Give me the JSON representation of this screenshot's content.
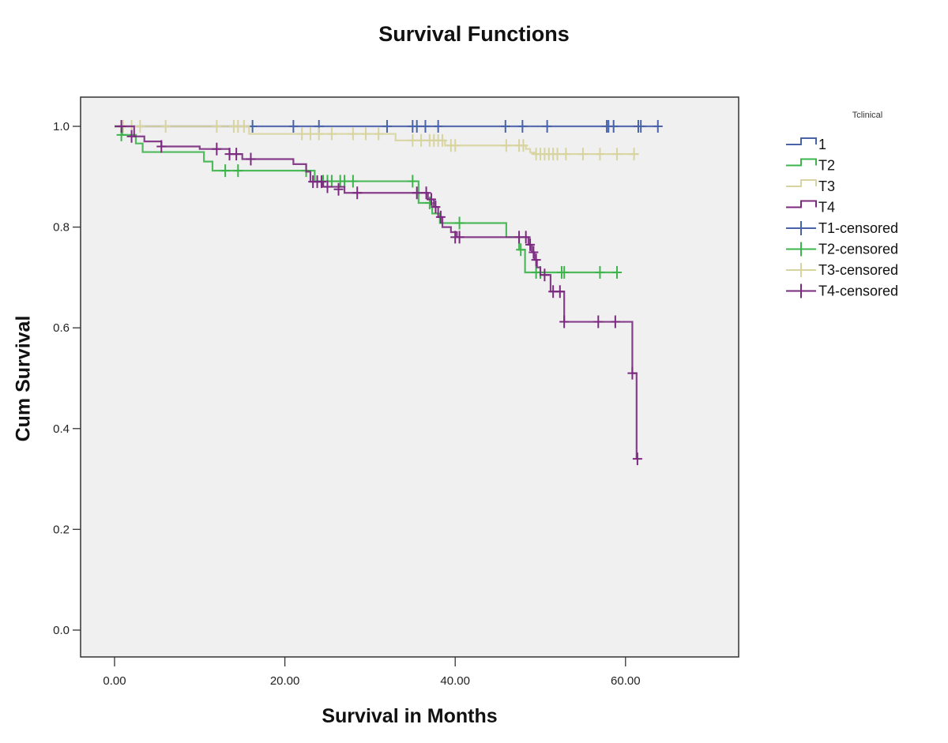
{
  "chart_data": {
    "type": "line",
    "subtype": "kaplan-meier-step",
    "title": "Survival Functions",
    "xlabel": "Survival in Months",
    "ylabel": "Cum Survival",
    "xlim": [
      -4,
      73
    ],
    "ylim": [
      -0.05,
      1.06
    ],
    "xticks": [
      0,
      20,
      40,
      60
    ],
    "xtick_labels": [
      "0.00",
      "20.00",
      "40.00",
      "60.00"
    ],
    "yticks": [
      0.0,
      0.2,
      0.4,
      0.6,
      0.8,
      1.0
    ],
    "ytick_labels": [
      "0.0",
      "0.2",
      "0.4",
      "0.6",
      "0.8",
      "1.0"
    ],
    "grid": false,
    "background": "#f0f0f0",
    "legend": {
      "title": "Tclinical",
      "placement": "right",
      "entries": [
        {
          "label": "1",
          "kind": "step",
          "color": "#4a62a8"
        },
        {
          "label": "T2",
          "kind": "step",
          "color": "#3cb44b"
        },
        {
          "label": "T3",
          "kind": "step",
          "color": "#d8d4a0"
        },
        {
          "label": "T4",
          "kind": "step",
          "color": "#7b2a7f"
        },
        {
          "label": "T1-censored",
          "kind": "censor",
          "color": "#4a62a8"
        },
        {
          "label": "T2-censored",
          "kind": "censor",
          "color": "#3cb44b"
        },
        {
          "label": "T3-censored",
          "kind": "censor",
          "color": "#d8d4a0"
        },
        {
          "label": "T4-censored",
          "kind": "censor",
          "color": "#7b2a7f"
        }
      ]
    },
    "series": [
      {
        "name": "T1",
        "color": "#4a62a8",
        "steps": [
          [
            0,
            1.0
          ],
          [
            63.8,
            1.0
          ]
        ],
        "censored": [
          [
            16.2,
            1.0
          ],
          [
            21,
            1.0
          ],
          [
            24,
            1.0
          ],
          [
            32,
            1.0
          ],
          [
            35,
            1.0
          ],
          [
            35.5,
            1.0
          ],
          [
            36.5,
            1.0
          ],
          [
            38,
            1.0
          ],
          [
            45.9,
            1.0
          ],
          [
            47.9,
            1.0
          ],
          [
            50.8,
            1.0
          ],
          [
            57.8,
            1.0
          ],
          [
            58,
            1.0
          ],
          [
            58.6,
            1.0
          ],
          [
            61.5,
            1.0
          ],
          [
            61.8,
            1.0
          ],
          [
            63.8,
            1.0
          ]
        ]
      },
      {
        "name": "T3",
        "color": "#d8d4a0",
        "steps": [
          [
            0,
            1.0
          ],
          [
            15.8,
            0.985
          ],
          [
            33,
            0.972
          ],
          [
            38.8,
            0.962
          ],
          [
            48.3,
            0.955
          ],
          [
            48.8,
            0.948
          ],
          [
            49.3,
            0.945
          ],
          [
            61.5,
            0.945
          ]
        ],
        "censored": [
          [
            1,
            1.0
          ],
          [
            2,
            1.0
          ],
          [
            3,
            1.0
          ],
          [
            6,
            1.0
          ],
          [
            12,
            1.0
          ],
          [
            14,
            1.0
          ],
          [
            14.5,
            1.0
          ],
          [
            15.2,
            1.0
          ],
          [
            22,
            0.985
          ],
          [
            23,
            0.985
          ],
          [
            24,
            0.985
          ],
          [
            25.5,
            0.985
          ],
          [
            28,
            0.985
          ],
          [
            29.5,
            0.985
          ],
          [
            31,
            0.985
          ],
          [
            35,
            0.972
          ],
          [
            36,
            0.972
          ],
          [
            37,
            0.972
          ],
          [
            37.5,
            0.972
          ],
          [
            38,
            0.972
          ],
          [
            38.5,
            0.972
          ],
          [
            39.5,
            0.962
          ],
          [
            40,
            0.962
          ],
          [
            46,
            0.962
          ],
          [
            47.5,
            0.962
          ],
          [
            48,
            0.962
          ],
          [
            49.5,
            0.945
          ],
          [
            50,
            0.945
          ],
          [
            50.5,
            0.945
          ],
          [
            51,
            0.945
          ],
          [
            51.5,
            0.945
          ],
          [
            52,
            0.945
          ],
          [
            53,
            0.945
          ],
          [
            55,
            0.945
          ],
          [
            57,
            0.945
          ],
          [
            59,
            0.945
          ],
          [
            61,
            0.945
          ]
        ]
      },
      {
        "name": "T2",
        "color": "#3cb44b",
        "steps": [
          [
            0,
            1.0
          ],
          [
            0.9,
            0.983
          ],
          [
            2.5,
            0.966
          ],
          [
            3.3,
            0.949
          ],
          [
            10.5,
            0.93
          ],
          [
            11.5,
            0.912
          ],
          [
            23.5,
            0.891
          ],
          [
            35.7,
            0.848
          ],
          [
            37.3,
            0.827
          ],
          [
            38.2,
            0.808
          ],
          [
            46,
            0.78
          ],
          [
            47.5,
            0.755
          ],
          [
            48.2,
            0.71
          ],
          [
            59,
            0.71
          ]
        ],
        "censored": [
          [
            0.8,
            0.983
          ],
          [
            13,
            0.912
          ],
          [
            14.5,
            0.912
          ],
          [
            22.5,
            0.912
          ],
          [
            24.5,
            0.891
          ],
          [
            25,
            0.891
          ],
          [
            25.5,
            0.891
          ],
          [
            26.5,
            0.891
          ],
          [
            27,
            0.891
          ],
          [
            28,
            0.891
          ],
          [
            35,
            0.891
          ],
          [
            37,
            0.848
          ],
          [
            40.5,
            0.808
          ],
          [
            47.7,
            0.755
          ],
          [
            49.5,
            0.71
          ],
          [
            50,
            0.71
          ],
          [
            52.5,
            0.71
          ],
          [
            52.8,
            0.71
          ],
          [
            57,
            0.71
          ],
          [
            59,
            0.71
          ]
        ]
      },
      {
        "name": "T4",
        "color": "#7b2a7f",
        "steps": [
          [
            0,
            1.0
          ],
          [
            2.3,
            0.98
          ],
          [
            3.5,
            0.97
          ],
          [
            5.5,
            0.96
          ],
          [
            10,
            0.955
          ],
          [
            13.5,
            0.945
          ],
          [
            15,
            0.935
          ],
          [
            21,
            0.925
          ],
          [
            22.5,
            0.91
          ],
          [
            23,
            0.89
          ],
          [
            24.5,
            0.88
          ],
          [
            27,
            0.868
          ],
          [
            36.8,
            0.855
          ],
          [
            37.5,
            0.84
          ],
          [
            38,
            0.82
          ],
          [
            38.5,
            0.8
          ],
          [
            39.5,
            0.79
          ],
          [
            40.2,
            0.78
          ],
          [
            48.6,
            0.765
          ],
          [
            49,
            0.75
          ],
          [
            49.3,
            0.735
          ],
          [
            49.6,
            0.72
          ],
          [
            50,
            0.705
          ],
          [
            51.2,
            0.672
          ],
          [
            52.8,
            0.612
          ],
          [
            60.8,
            0.51
          ],
          [
            61.3,
            0.34
          ]
        ],
        "censored": [
          [
            0.8,
            1.0
          ],
          [
            2,
            0.98
          ],
          [
            5.5,
            0.96
          ],
          [
            12,
            0.955
          ],
          [
            13.5,
            0.945
          ],
          [
            14.3,
            0.945
          ],
          [
            16,
            0.935
          ],
          [
            23.3,
            0.89
          ],
          [
            23.8,
            0.89
          ],
          [
            24.3,
            0.89
          ],
          [
            25,
            0.88
          ],
          [
            26.3,
            0.875
          ],
          [
            28.5,
            0.868
          ],
          [
            35.5,
            0.868
          ],
          [
            36.6,
            0.868
          ],
          [
            37.2,
            0.855
          ],
          [
            37.7,
            0.84
          ],
          [
            38.3,
            0.82
          ],
          [
            40,
            0.78
          ],
          [
            40.5,
            0.78
          ],
          [
            47.5,
            0.78
          ],
          [
            48.3,
            0.78
          ],
          [
            48.8,
            0.765
          ],
          [
            49.2,
            0.75
          ],
          [
            49.5,
            0.735
          ],
          [
            50.5,
            0.705
          ],
          [
            51.5,
            0.672
          ],
          [
            52.3,
            0.672
          ],
          [
            52.8,
            0.612
          ],
          [
            56.8,
            0.612
          ],
          [
            58.8,
            0.612
          ],
          [
            60.8,
            0.51
          ],
          [
            61.4,
            0.34
          ]
        ]
      }
    ]
  }
}
